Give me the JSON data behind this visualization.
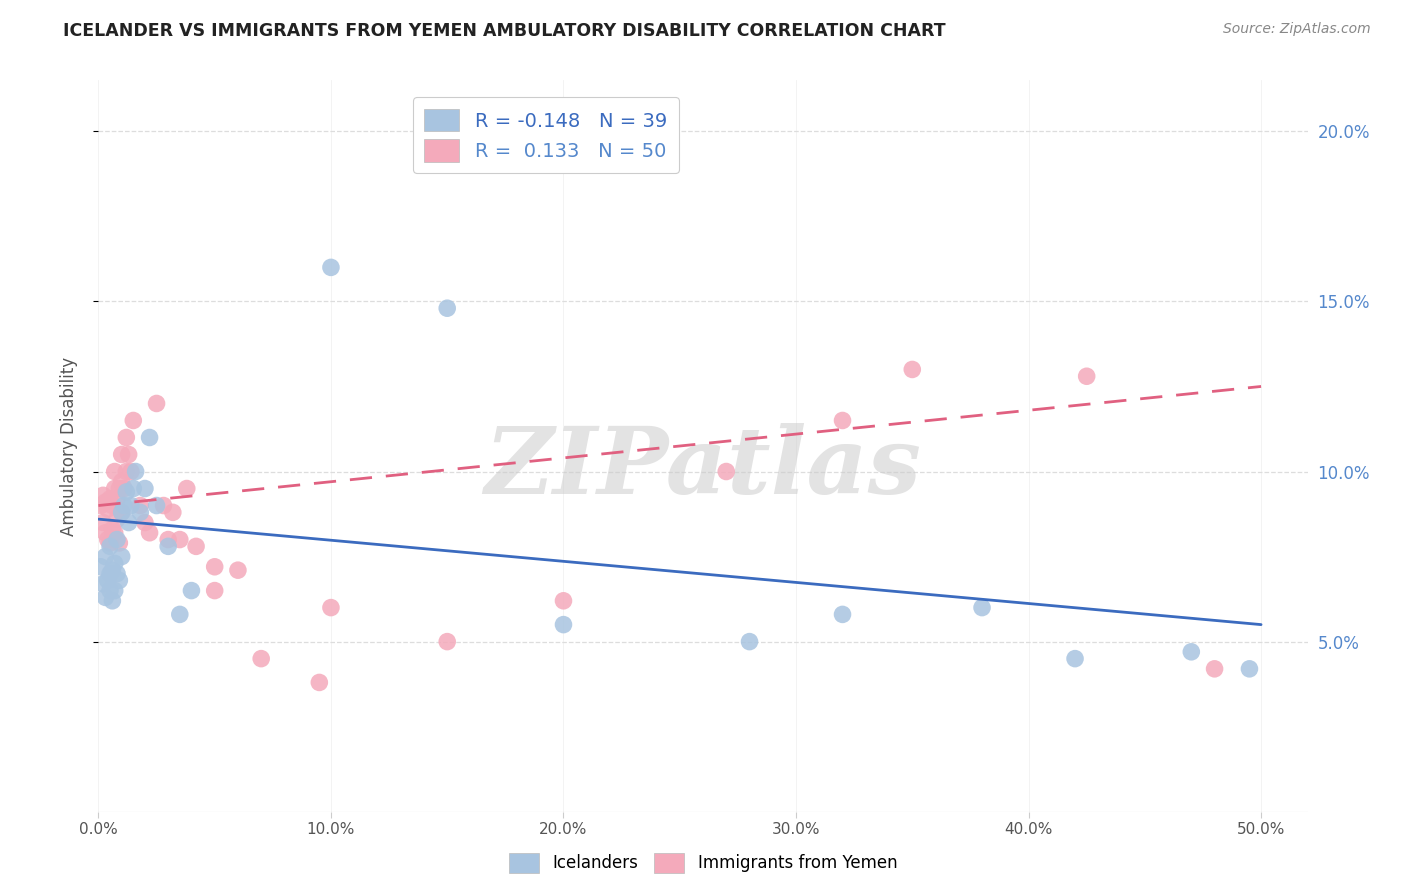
{
  "title": "ICELANDER VS IMMIGRANTS FROM YEMEN AMBULATORY DISABILITY CORRELATION CHART",
  "source": "Source: ZipAtlas.com",
  "ylabel": "Ambulatory Disability",
  "xlim": [
    0.0,
    0.52
  ],
  "ylim": [
    0.0,
    0.215
  ],
  "xtick_vals": [
    0.0,
    0.1,
    0.2,
    0.3,
    0.4,
    0.5
  ],
  "ytick_vals": [
    0.05,
    0.1,
    0.15,
    0.2
  ],
  "legend_labels": [
    "Icelanders",
    "Immigrants from Yemen"
  ],
  "R_blue": -0.148,
  "N_blue": 39,
  "R_pink": 0.133,
  "N_pink": 50,
  "blue_color": "#A8C4E0",
  "pink_color": "#F4AABB",
  "blue_line_color": "#3B6BBF",
  "pink_line_color": "#E06080",
  "background_color": "#FFFFFF",
  "grid_color": "#DDDDDD",
  "title_color": "#222222",
  "watermark": "ZIPatlas",
  "blue_x": [
    0.001,
    0.002,
    0.003,
    0.003,
    0.004,
    0.005,
    0.005,
    0.005,
    0.006,
    0.006,
    0.007,
    0.007,
    0.008,
    0.008,
    0.009,
    0.01,
    0.01,
    0.011,
    0.012,
    0.013,
    0.014,
    0.015,
    0.016,
    0.018,
    0.02,
    0.022,
    0.025,
    0.03,
    0.035,
    0.04,
    0.1,
    0.15,
    0.2,
    0.28,
    0.32,
    0.38,
    0.42,
    0.47,
    0.495
  ],
  "blue_y": [
    0.072,
    0.067,
    0.063,
    0.075,
    0.068,
    0.065,
    0.07,
    0.078,
    0.062,
    0.071,
    0.065,
    0.073,
    0.07,
    0.08,
    0.068,
    0.088,
    0.075,
    0.09,
    0.094,
    0.085,
    0.09,
    0.095,
    0.1,
    0.088,
    0.095,
    0.11,
    0.09,
    0.078,
    0.058,
    0.065,
    0.16,
    0.148,
    0.055,
    0.05,
    0.058,
    0.06,
    0.045,
    0.047,
    0.042
  ],
  "pink_x": [
    0.001,
    0.002,
    0.002,
    0.003,
    0.003,
    0.004,
    0.004,
    0.005,
    0.005,
    0.006,
    0.006,
    0.007,
    0.007,
    0.007,
    0.008,
    0.008,
    0.009,
    0.009,
    0.01,
    0.01,
    0.01,
    0.011,
    0.012,
    0.012,
    0.013,
    0.014,
    0.015,
    0.018,
    0.02,
    0.022,
    0.025,
    0.028,
    0.03,
    0.032,
    0.035,
    0.038,
    0.042,
    0.05,
    0.05,
    0.06,
    0.07,
    0.095,
    0.1,
    0.15,
    0.2,
    0.27,
    0.32,
    0.35,
    0.425,
    0.48
  ],
  "pink_y": [
    0.09,
    0.085,
    0.093,
    0.082,
    0.091,
    0.08,
    0.089,
    0.079,
    0.092,
    0.083,
    0.09,
    0.082,
    0.095,
    0.1,
    0.086,
    0.092,
    0.079,
    0.095,
    0.088,
    0.097,
    0.105,
    0.095,
    0.1,
    0.11,
    0.105,
    0.1,
    0.115,
    0.09,
    0.085,
    0.082,
    0.12,
    0.09,
    0.08,
    0.088,
    0.08,
    0.095,
    0.078,
    0.072,
    0.065,
    0.071,
    0.045,
    0.038,
    0.06,
    0.05,
    0.062,
    0.1,
    0.115,
    0.13,
    0.128,
    0.042
  ],
  "blue_line_x0": 0.0,
  "blue_line_y0": 0.086,
  "blue_line_x1": 0.5,
  "blue_line_y1": 0.055,
  "pink_line_x0": 0.0,
  "pink_line_y0": 0.09,
  "pink_line_x1": 0.5,
  "pink_line_y1": 0.125
}
